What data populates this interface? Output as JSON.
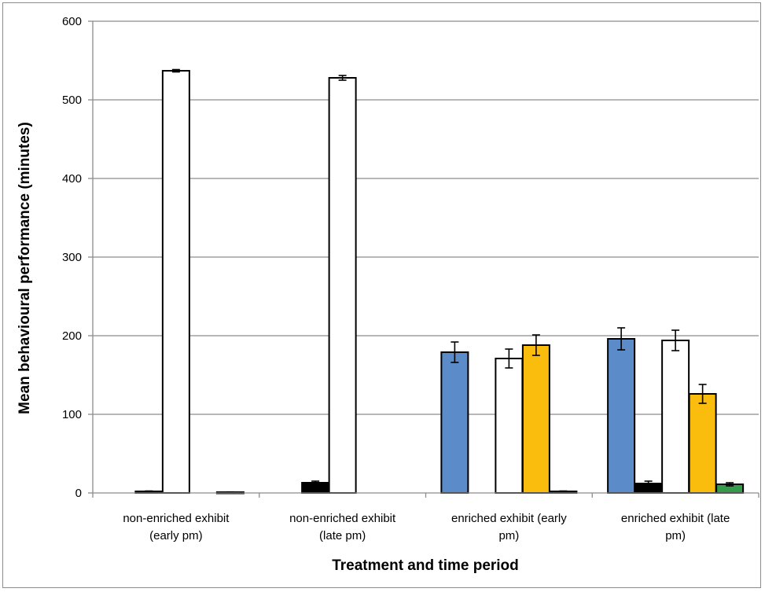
{
  "chart_data": {
    "type": "bar",
    "title": "",
    "xlabel": "Treatment and time period",
    "ylabel": "Mean behavioural performance (minutes)",
    "ylim": [
      0,
      600
    ],
    "yticks": [
      "0",
      "100",
      "200",
      "300",
      "400",
      "500",
      "600"
    ],
    "grid": true,
    "legend": "none",
    "categories": [
      [
        "non-enriched exhibit",
        "(early pm)"
      ],
      [
        "non-enriched exhibit",
        "(late pm)"
      ],
      [
        "enriched exhibit (early",
        "pm)"
      ],
      [
        "enriched exhibit (late",
        "pm)"
      ]
    ],
    "series": [
      {
        "color": "#5b8cc9",
        "values": [
          0,
          0,
          179,
          196
        ],
        "errors": [
          0,
          0,
          13,
          14
        ]
      },
      {
        "color": "#000000",
        "values": [
          2,
          13,
          0,
          12
        ],
        "errors": [
          0.5,
          2,
          0,
          3
        ]
      },
      {
        "color": "#ffffff",
        "values": [
          537,
          528,
          171,
          194
        ],
        "errors": [
          1.5,
          3,
          12,
          13
        ]
      },
      {
        "color": "#fbbd0d",
        "values": [
          0,
          0,
          188,
          126
        ],
        "errors": [
          0,
          0,
          13,
          12
        ]
      },
      {
        "color": "#339b4a",
        "values": [
          1,
          0,
          2,
          11
        ],
        "errors": [
          0.3,
          0,
          0.5,
          2
        ]
      }
    ]
  }
}
